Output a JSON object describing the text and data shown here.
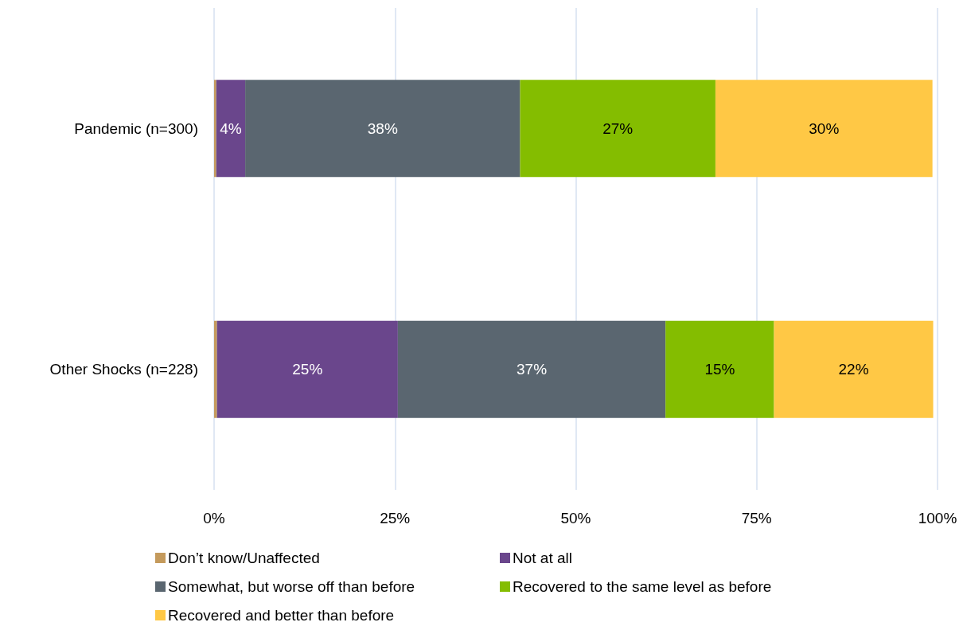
{
  "chart_data": {
    "type": "bar",
    "orientation": "horizontal",
    "stacked": true,
    "categories": [
      "Pandemic (n=300)",
      "Other Shocks (n=228)"
    ],
    "series": [
      {
        "name": "Don’t know/Unaffected",
        "color": "#c49a5c",
        "values": [
          0.3,
          0.4
        ],
        "value_labels": [
          null,
          null
        ]
      },
      {
        "name": "Not at all",
        "color": "#6a468c",
        "values": [
          4,
          25
        ],
        "value_labels": [
          "4%",
          "25%"
        ]
      },
      {
        "name": "Somewhat, but worse off than before",
        "color": "#5a6670",
        "values": [
          38,
          37
        ],
        "value_labels": [
          "38%",
          "37%"
        ]
      },
      {
        "name": "Recovered to the same level as before",
        "color": "#84bd00",
        "values": [
          27,
          15
        ],
        "value_labels": [
          "27%",
          "15%"
        ]
      },
      {
        "name": "Recovered and better than before",
        "color": "#ffc845",
        "values": [
          30,
          22
        ],
        "value_labels": [
          "30%",
          "22%"
        ]
      }
    ],
    "xlim": [
      0,
      100
    ],
    "xticks": [
      {
        "value": 0,
        "label": "0%"
      },
      {
        "value": 25,
        "label": "25%"
      },
      {
        "value": 50,
        "label": "50%"
      },
      {
        "value": 75,
        "label": "75%"
      },
      {
        "value": 100,
        "label": "100%"
      }
    ],
    "grid": "x",
    "legend": "bottom"
  }
}
